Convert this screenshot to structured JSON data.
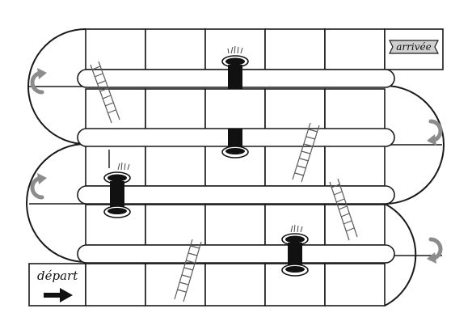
{
  "board": {
    "start_label": "départ",
    "finish_label": "arrivée",
    "start_arrow_icon": "right-arrow-icon",
    "turn_arrow_icon": "curved-turn-arrow-icon",
    "ladder_icon": "ladder-icon",
    "hole_icon": "hole-icon",
    "colors": {
      "ink": "#1a1a1a",
      "turn_arrow": "#8c8c8c",
      "ladder": "#5a5a5a",
      "hole": "#111111"
    }
  }
}
